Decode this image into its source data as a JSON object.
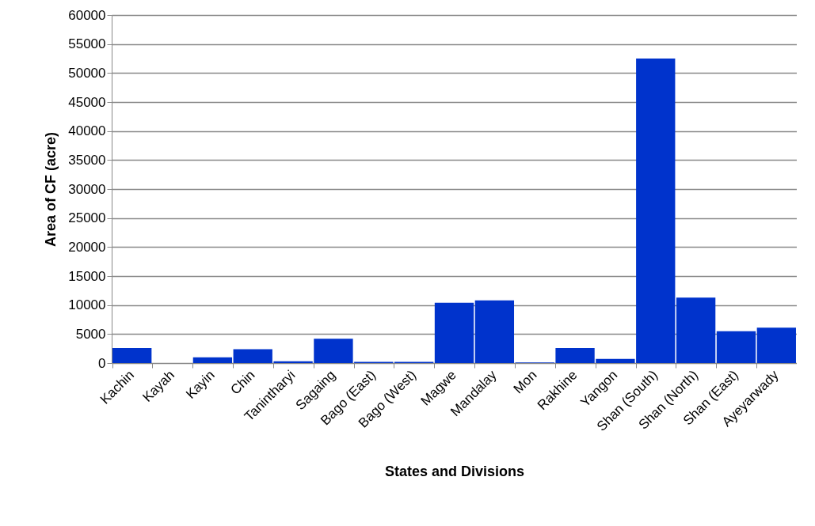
{
  "chart_data": {
    "type": "bar",
    "xlabel": "States and Divisions",
    "ylabel": "Area of CF (acre)",
    "categories": [
      "Kachin",
      "Kayah",
      "Kayin",
      "Chin",
      "Tanintharyi",
      "Sagaing",
      "Bago (East)",
      "Bago (West)",
      "Magwe",
      "Mandalay",
      "Mon",
      "Rakhine",
      "Yangon",
      "Shan (South)",
      "Shan (North)",
      "Shan (East)",
      "Ayeyarwady"
    ],
    "values": [
      2600,
      0,
      1000,
      2400,
      300,
      4200,
      200,
      200,
      10400,
      10800,
      100,
      2600,
      700,
      52500,
      11300,
      5500,
      6100
    ],
    "color": "#0033cc",
    "ylim": [
      0,
      60000
    ],
    "yticks": [
      0,
      5000,
      10000,
      15000,
      20000,
      25000,
      30000,
      35000,
      40000,
      45000,
      50000,
      55000,
      60000
    ],
    "grid": "y"
  }
}
